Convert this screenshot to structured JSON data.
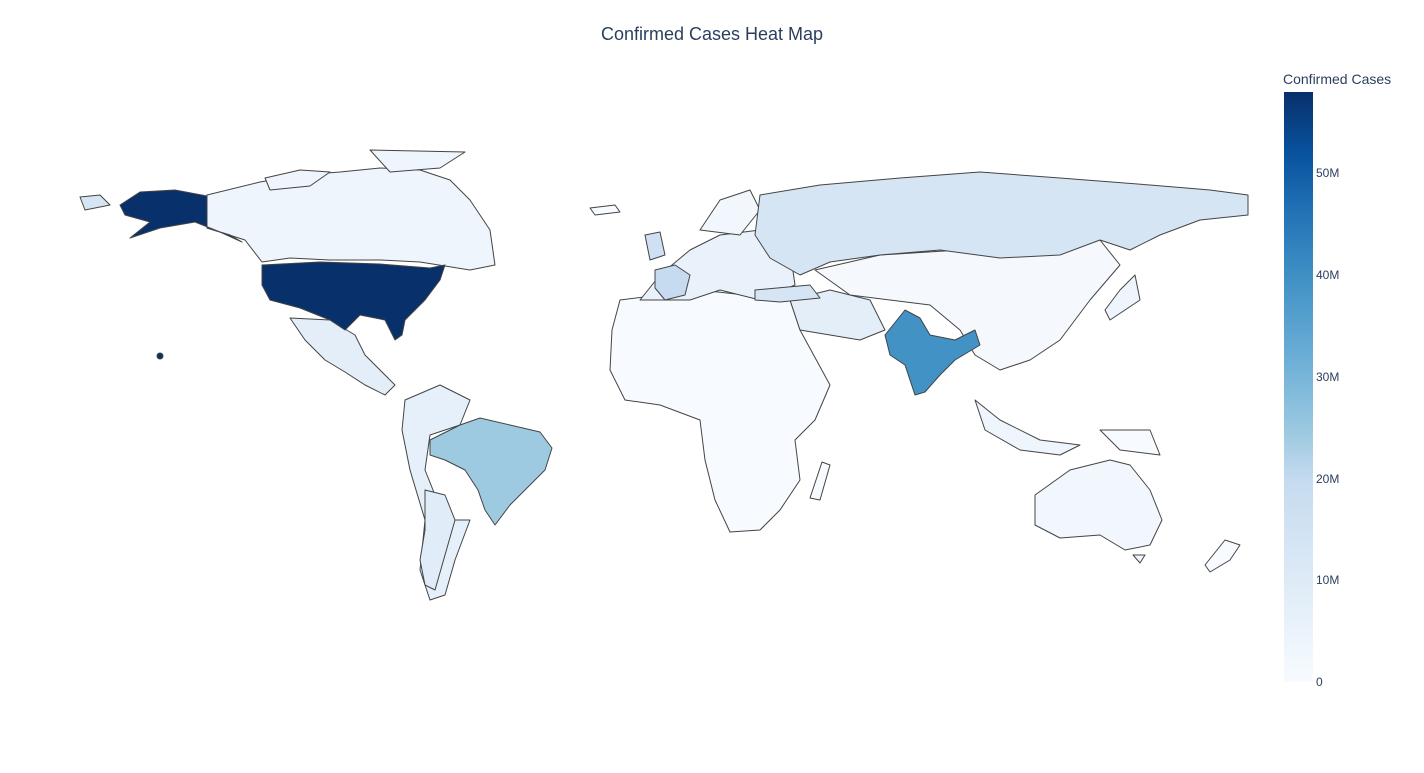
{
  "chart_data": {
    "type": "heatmap",
    "title": "Confirmed Cases Heat Map",
    "colorbar": {
      "title": "Confirmed Cases",
      "ticks": [
        {
          "value": 0,
          "label": "0"
        },
        {
          "value": 10000000,
          "label": "10M"
        },
        {
          "value": 20000000,
          "label": "20M"
        },
        {
          "value": 30000000,
          "label": "30M"
        },
        {
          "value": 40000000,
          "label": "40M"
        },
        {
          "value": 50000000,
          "label": "50M"
        }
      ],
      "range": [
        0,
        58000000
      ],
      "colorscale": "Blues"
    },
    "regions": [
      {
        "value": 58000000
      },
      {
        "value": 1500000
      },
      {
        "value": 2500000
      },
      {
        "value": 21000000
      },
      {
        "value": 2000000
      },
      {
        "value": 4000000
      },
      {
        "value": 900000
      },
      {
        "value": 34000000
      },
      {
        "value": 11000000
      },
      {
        "value": 300000
      },
      {
        "value": 2000000
      },
      {
        "value": 800000
      },
      {
        "value": 1800000
      },
      {
        "value": 1000000
      }
    ]
  }
}
